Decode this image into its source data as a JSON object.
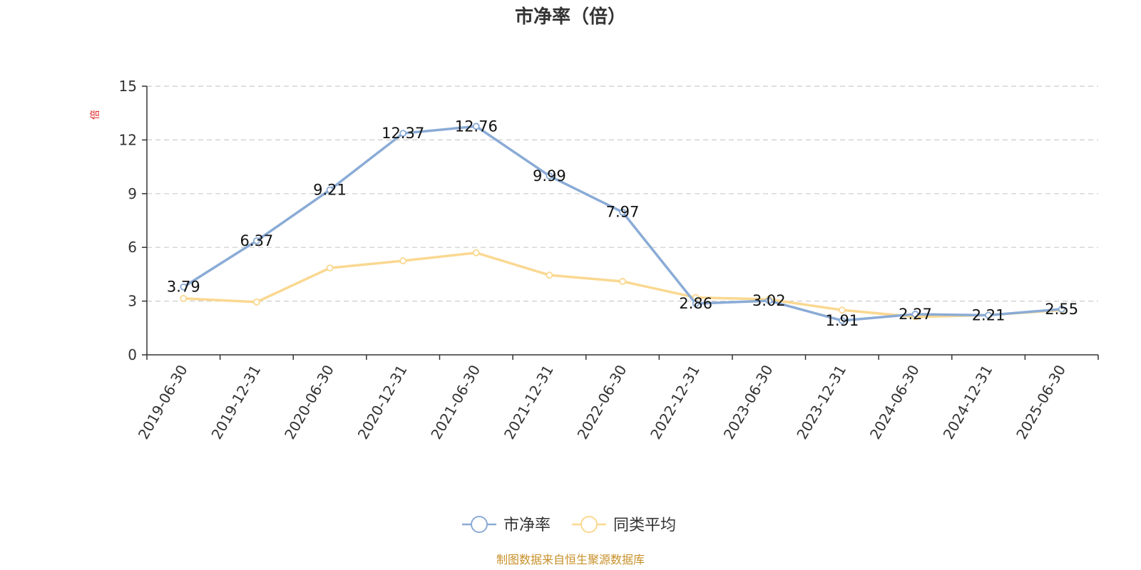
{
  "chart_data": {
    "type": "line",
    "title": "市净率（倍）",
    "ylabel": "倍",
    "xlabel": "",
    "ylim": [
      0,
      15
    ],
    "yticks": [
      0,
      3,
      6,
      9,
      12,
      15
    ],
    "grid": true,
    "legend_position": "bottom-center",
    "categories": [
      "2019-06-30",
      "2019-12-31",
      "2020-06-30",
      "2020-12-31",
      "2021-06-30",
      "2021-12-31",
      "2022-06-30",
      "2022-12-31",
      "2023-06-30",
      "2023-12-31",
      "2024-06-30",
      "2024-12-31",
      "2025-06-30"
    ],
    "series": [
      {
        "name": "市净率",
        "color": "#8aabd6",
        "values": [
          3.79,
          6.37,
          9.21,
          12.37,
          12.76,
          9.99,
          7.97,
          2.86,
          3.02,
          1.91,
          2.27,
          2.21,
          2.55
        ],
        "labels": [
          "3.79",
          "6.37",
          "9.21",
          "12.37",
          "12.76",
          "9.99",
          "7.97",
          "2.86",
          "3.02",
          "1.91",
          "2.27",
          "2.21",
          "2.55"
        ]
      },
      {
        "name": "同类平均",
        "color": "#fad891",
        "values": [
          3.15,
          2.95,
          4.85,
          5.25,
          5.7,
          4.45,
          4.1,
          3.2,
          3.1,
          2.5,
          2.12,
          2.22,
          2.5
        ]
      }
    ],
    "source": "制图数据来自恒生聚源数据库"
  }
}
